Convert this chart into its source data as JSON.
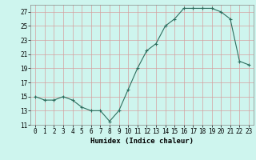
{
  "x": [
    0,
    1,
    2,
    3,
    4,
    5,
    6,
    7,
    8,
    9,
    10,
    11,
    12,
    13,
    14,
    15,
    16,
    17,
    18,
    19,
    20,
    21,
    22,
    23
  ],
  "y": [
    15,
    14.5,
    14.5,
    15,
    14.5,
    13.5,
    13,
    13,
    11.5,
    13,
    16,
    19,
    21.5,
    22.5,
    25,
    26,
    27.5,
    27.5,
    27.5,
    27.5,
    27,
    26,
    20,
    19.5
  ],
  "line_color": "#2d6e5e",
  "marker_color": "#2d6e5e",
  "bg_color": "#cef5ee",
  "grid_color": "#d4a0a0",
  "xlabel": "Humidex (Indice chaleur)",
  "xlim": [
    -0.5,
    23.5
  ],
  "ylim": [
    11,
    28
  ],
  "yticks": [
    11,
    13,
    15,
    17,
    19,
    21,
    23,
    25,
    27
  ],
  "xticks": [
    0,
    1,
    2,
    3,
    4,
    5,
    6,
    7,
    8,
    9,
    10,
    11,
    12,
    13,
    14,
    15,
    16,
    17,
    18,
    19,
    20,
    21,
    22,
    23
  ],
  "tick_fontsize": 5.5,
  "label_fontsize": 6.5
}
